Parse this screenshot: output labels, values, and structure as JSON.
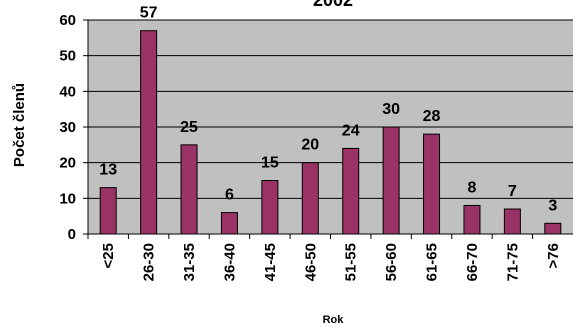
{
  "chart_data": {
    "type": "bar",
    "title": "2002",
    "xlabel": "Rok",
    "ylabel": "Počet členů",
    "categories": [
      "<25",
      "26-30",
      "31-35",
      "36-40",
      "41-45",
      "46-50",
      "51-55",
      "56-60",
      "61-65",
      "66-70",
      "71-75",
      ">76"
    ],
    "values": [
      13,
      57,
      25,
      6,
      15,
      20,
      24,
      30,
      28,
      8,
      7,
      3
    ],
    "ylim": [
      0,
      60
    ],
    "yticks": [
      0,
      10,
      20,
      30,
      40,
      50,
      60
    ],
    "grid": true,
    "legend": "none",
    "colors": {
      "bar": "#993366",
      "bar_edge": "#000000",
      "plot_background": "#c0c0c0",
      "gridline": "#000000"
    }
  }
}
